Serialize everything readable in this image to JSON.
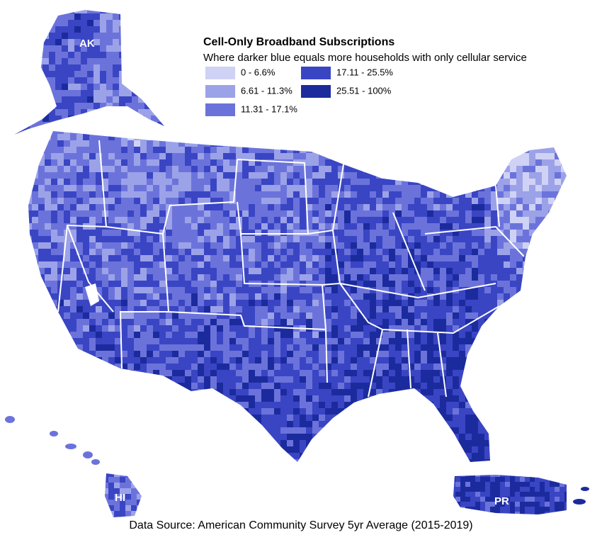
{
  "title": "Cell-Only Broadband Subscriptions",
  "subtitle": "Where darker blue equals more households with only cellular service",
  "legend": {
    "items": [
      {
        "label": "0 - 6.6%",
        "color": "#cfd2f4"
      },
      {
        "label": "6.61 - 11.3%",
        "color": "#9ca2e8"
      },
      {
        "label": "11.31 - 17.1%",
        "color": "#6b73db"
      },
      {
        "label": "17.11 - 25.5%",
        "color": "#3a45c4"
      },
      {
        "label": "25.51 - 100%",
        "color": "#1b2b9e"
      }
    ]
  },
  "regions": {
    "alaska": "AK",
    "hawaii": "HI",
    "puerto_rico": "PR"
  },
  "source": "Data Source: American Community Survey 5yr Average (2015-2019)"
}
